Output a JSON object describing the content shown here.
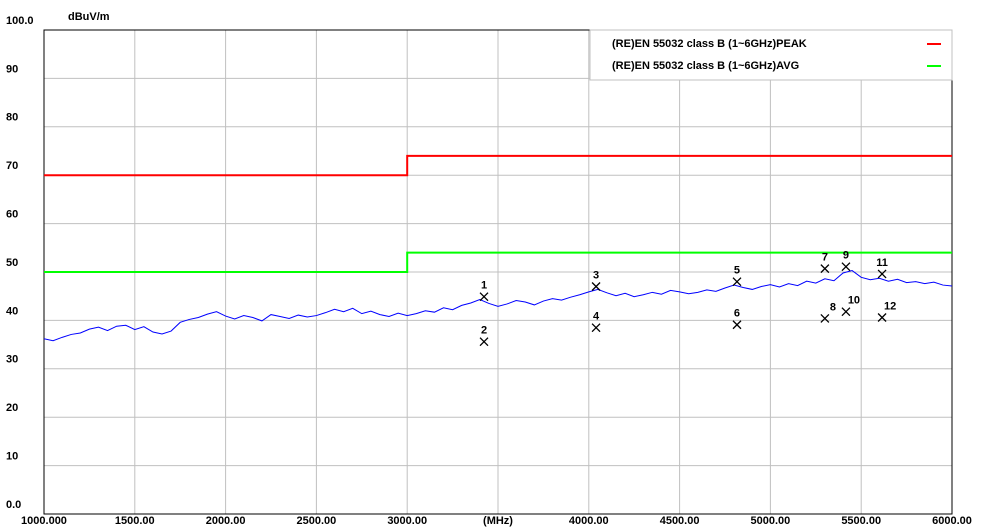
{
  "chart_data": {
    "type": "line",
    "ylabel": "dBuV/m",
    "xlim": [
      1000,
      6000
    ],
    "ylim": [
      0,
      100
    ],
    "xticks": [
      {
        "value": 1000,
        "label": "1000.000"
      },
      {
        "value": 1500,
        "label": "1500.00"
      },
      {
        "value": 2000,
        "label": "2000.00"
      },
      {
        "value": 2500,
        "label": "2500.00"
      },
      {
        "value": 3000,
        "label": "3000.00"
      },
      {
        "value": 3500,
        "label": "(MHz)"
      },
      {
        "value": 4000,
        "label": "4000.00"
      },
      {
        "value": 4500,
        "label": "4500.00"
      },
      {
        "value": 5000,
        "label": "5000.00"
      },
      {
        "value": 5500,
        "label": "5500.00"
      },
      {
        "value": 6000,
        "label": "6000.00"
      }
    ],
    "yticks": [
      {
        "value": 0,
        "label": "0.0"
      },
      10,
      20,
      30,
      40,
      50,
      60,
      70,
      80,
      90,
      {
        "value": 100,
        "label": "100.0"
      }
    ],
    "grid": true,
    "legend": "top-right",
    "series": [
      {
        "name": "(RE)EN 55032 class B (1~6GHz)PEAK",
        "color": "#ff0000",
        "x": [
          1000,
          3000,
          3000,
          6000
        ],
        "values": [
          70,
          70,
          74,
          74
        ]
      },
      {
        "name": "(RE)EN 55032 class B (1~6GHz)AVG",
        "color": "#00ff00",
        "x": [
          1000,
          3000,
          3000,
          6000
        ],
        "values": [
          50,
          50,
          54,
          54
        ]
      },
      {
        "color": "#0000ff",
        "x": [
          1000,
          1050,
          1100,
          1150,
          1200,
          1250,
          1300,
          1350,
          1400,
          1450,
          1500,
          1550,
          1600,
          1650,
          1700,
          1750,
          1800,
          1850,
          1900,
          1950,
          2000,
          2050,
          2100,
          2150,
          2200,
          2250,
          2300,
          2350,
          2400,
          2450,
          2500,
          2550,
          2600,
          2650,
          2700,
          2750,
          2800,
          2850,
          2900,
          2950,
          3000,
          3050,
          3100,
          3150,
          3200,
          3250,
          3300,
          3350,
          3400,
          3450,
          3500,
          3550,
          3600,
          3650,
          3700,
          3750,
          3800,
          3850,
          3900,
          3950,
          4000,
          4050,
          4100,
          4150,
          4200,
          4250,
          4300,
          4350,
          4400,
          4450,
          4500,
          4550,
          4600,
          4650,
          4700,
          4750,
          4800,
          4850,
          4900,
          4950,
          5000,
          5050,
          5100,
          5150,
          5200,
          5250,
          5300,
          5350,
          5400,
          5450,
          5500,
          5550,
          5600,
          5650,
          5700,
          5750,
          5800,
          5850,
          5900,
          5950,
          6000
        ],
        "values": [
          36.2,
          35.8,
          36.5,
          37.1,
          37.4,
          38.2,
          38.6,
          37.9,
          38.8,
          39.0,
          38.1,
          38.7,
          37.6,
          37.2,
          37.8,
          39.6,
          40.2,
          40.6,
          41.3,
          41.8,
          40.9,
          40.3,
          41.0,
          40.6,
          39.9,
          41.2,
          40.8,
          40.4,
          41.1,
          40.7,
          41.0,
          41.6,
          42.3,
          41.8,
          42.5,
          41.4,
          41.9,
          41.2,
          40.8,
          41.5,
          41.0,
          41.4,
          42.0,
          41.7,
          42.6,
          42.2,
          43.1,
          43.6,
          44.3,
          43.5,
          42.9,
          43.4,
          44.1,
          43.8,
          43.2,
          44.0,
          44.5,
          44.2,
          44.8,
          45.3,
          45.9,
          46.4,
          45.7,
          45.1,
          45.6,
          44.9,
          45.3,
          45.8,
          45.4,
          46.2,
          45.9,
          45.5,
          45.8,
          46.3,
          46.0,
          46.7,
          47.3,
          46.8,
          46.4,
          47.0,
          47.4,
          46.9,
          47.6,
          47.2,
          48.1,
          47.7,
          48.6,
          48.2,
          49.8,
          50.3,
          48.9,
          48.4,
          48.7,
          48.1,
          48.5,
          47.8,
          48.0,
          47.6,
          47.9,
          47.3,
          47.1
        ]
      }
    ],
    "markers": {
      "labels": [
        "1",
        "2",
        "3",
        "4",
        "5",
        "6",
        "7",
        "8",
        "9",
        "10",
        "11",
        "12"
      ],
      "x": [
        3423,
        3423,
        4040,
        4040,
        4816,
        4816,
        5300,
        5300,
        5416,
        5416,
        5615,
        5615
      ],
      "values": [
        44.9,
        35.6,
        47.0,
        38.5,
        48.0,
        39.1,
        50.7,
        40.4,
        51.1,
        41.8,
        49.6,
        40.6
      ]
    }
  }
}
